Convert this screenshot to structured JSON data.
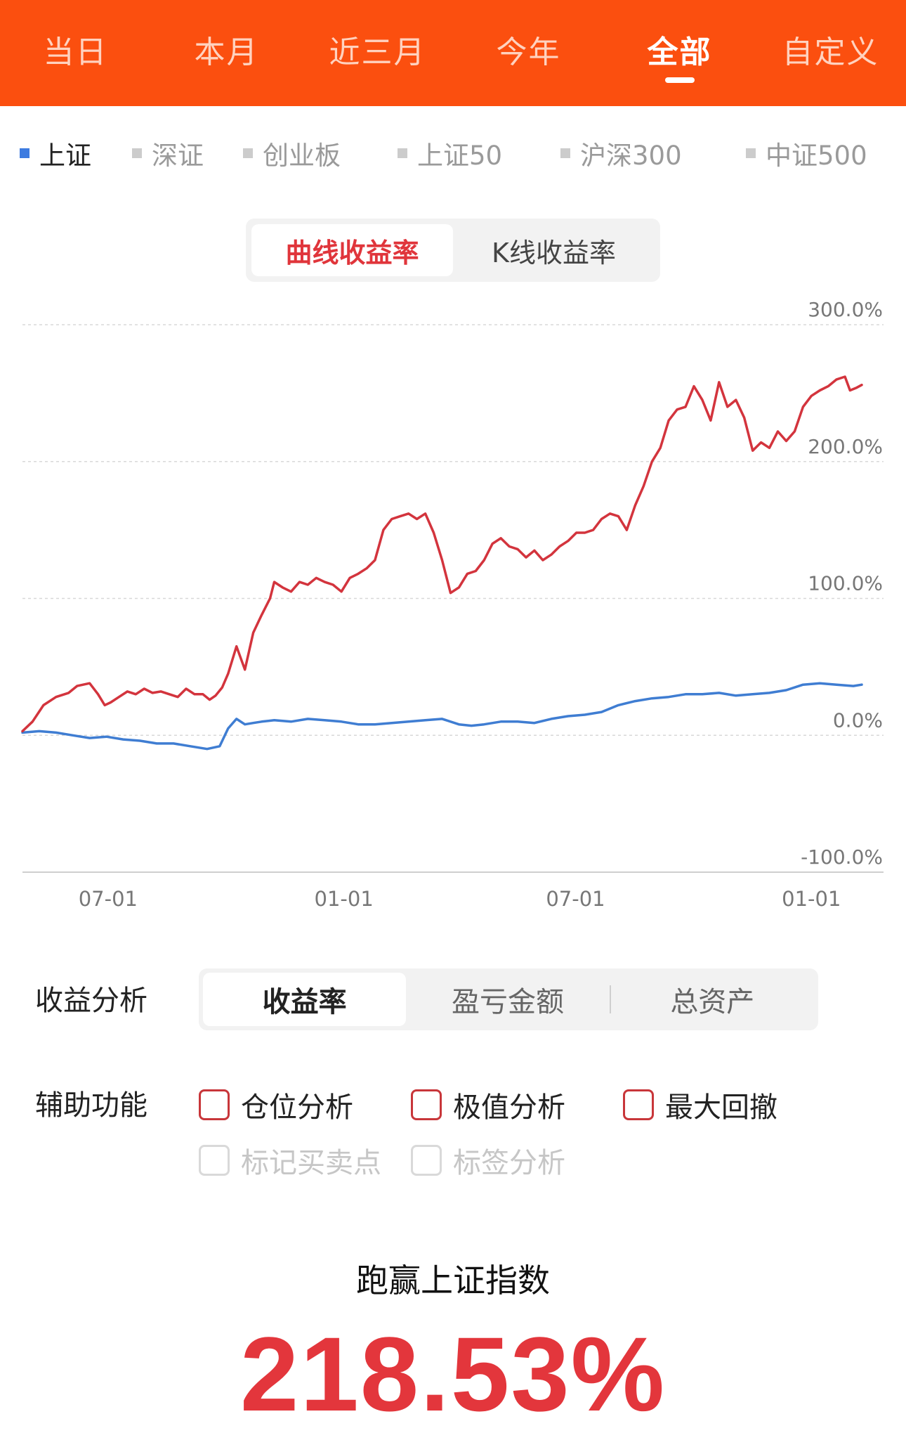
{
  "period_tabs": [
    {
      "label": "当日",
      "active": false
    },
    {
      "label": "本月",
      "active": false
    },
    {
      "label": "近三月",
      "active": false
    },
    {
      "label": "今年",
      "active": false
    },
    {
      "label": "全部",
      "active": true
    },
    {
      "label": "自定义",
      "active": false
    }
  ],
  "index_items": [
    {
      "label": "上证",
      "active": true
    },
    {
      "label": "深证",
      "active": false
    },
    {
      "label": "创业板",
      "active": false
    },
    {
      "label": "上证50",
      "active": false
    },
    {
      "label": "沪深300",
      "active": false
    },
    {
      "label": "中证500",
      "active": false
    }
  ],
  "chart_mode": {
    "options": [
      "曲线收益率",
      "K线收益率"
    ],
    "selected": "曲线收益率"
  },
  "chart_data": {
    "type": "line",
    "ylim": [
      -100,
      300
    ],
    "yticks": [
      "300.0%",
      "200.0%",
      "100.0%",
      "0.0%",
      "-100.0%"
    ],
    "ytick_values": [
      300,
      200,
      100,
      0,
      -100
    ],
    "xticks": [
      "07-01",
      "01-01",
      "07-01",
      "01-01"
    ],
    "x_range": [
      0,
      100
    ],
    "xtick_positions": [
      10.2,
      38.3,
      65.9,
      94.0
    ],
    "colors": {
      "portfolio": "#d3343d",
      "index": "#3f7dd2"
    },
    "series": [
      {
        "key": "portfolio",
        "x": [
          0,
          1.2,
          2.5,
          4,
          5.5,
          6.5,
          8,
          9,
          9.8,
          10.5,
          11.5,
          12.5,
          13.5,
          14.5,
          15.5,
          16.5,
          17.5,
          18.5,
          19.5,
          20.5,
          21.5,
          22.3,
          23,
          23.8,
          24.5,
          25.5,
          26.5,
          27.5,
          28.5,
          29.5,
          30,
          31,
          32,
          33,
          34,
          35,
          36,
          37,
          38,
          39,
          40,
          41,
          42,
          43,
          44,
          45,
          46,
          47,
          48,
          49,
          50,
          51,
          52,
          53,
          54,
          55,
          56,
          57,
          58,
          59,
          60,
          61,
          62,
          63,
          64,
          65,
          66,
          67,
          68,
          69,
          70,
          71,
          72,
          73,
          74,
          75,
          76,
          77,
          78,
          79,
          80,
          81,
          82,
          83,
          84,
          85,
          86,
          87,
          88,
          89,
          90,
          91,
          92,
          93,
          94,
          95,
          96,
          97,
          98,
          98.6,
          99.4,
          100
        ],
        "values": [
          3,
          10,
          22,
          28,
          31,
          36,
          38,
          30,
          22,
          24,
          28,
          32,
          30,
          34,
          31,
          32,
          30,
          28,
          34,
          30,
          30,
          26,
          29,
          35,
          45,
          65,
          48,
          75,
          88,
          100,
          112,
          108,
          105,
          112,
          110,
          115,
          112,
          110,
          105,
          115,
          118,
          122,
          128,
          150,
          158,
          160,
          162,
          158,
          162,
          148,
          128,
          104,
          108,
          118,
          120,
          128,
          140,
          144,
          138,
          136,
          130,
          135,
          128,
          132,
          138,
          142,
          148,
          148,
          150,
          158,
          162,
          160,
          150,
          168,
          182,
          200,
          210,
          230,
          238,
          240,
          255,
          245,
          230,
          258,
          240,
          245,
          232,
          208,
          214,
          210,
          222,
          215,
          222,
          240,
          248,
          252,
          255,
          260,
          262,
          252,
          254,
          256
        ]
      },
      {
        "key": "index",
        "x": [
          0,
          2,
          4,
          6,
          8,
          10,
          12,
          14,
          16,
          18,
          20,
          22,
          23.5,
          24.5,
          25.5,
          26.5,
          27.5,
          28.5,
          30,
          32,
          34,
          36,
          38,
          40,
          42,
          44,
          46,
          48,
          50,
          52,
          53.5,
          55,
          57,
          59,
          61,
          63,
          65,
          67,
          69,
          71,
          73,
          75,
          77,
          79,
          81,
          83,
          85,
          87,
          89,
          91,
          93,
          95,
          97,
          99,
          100
        ],
        "values": [
          2,
          3,
          2,
          0,
          -2,
          -1,
          -3,
          -4,
          -6,
          -6,
          -8,
          -10,
          -8,
          5,
          12,
          8,
          9,
          10,
          11,
          10,
          12,
          11,
          10,
          8,
          8,
          9,
          10,
          11,
          12,
          8,
          7,
          8,
          10,
          10,
          9,
          12,
          14,
          15,
          17,
          22,
          25,
          27,
          28,
          30,
          30,
          31,
          29,
          30,
          31,
          33,
          37,
          38,
          37,
          36,
          37
        ]
      }
    ]
  },
  "analysis": {
    "label": "收益分析",
    "options": [
      "收益率",
      "盈亏金额",
      "总资产"
    ],
    "selected": "收益率"
  },
  "aux": {
    "label": "辅助功能",
    "checkboxes": [
      {
        "label": "仓位分析",
        "checked": false,
        "enabled": true
      },
      {
        "label": "极值分析",
        "checked": false,
        "enabled": true
      },
      {
        "label": "最大回撤",
        "checked": false,
        "enabled": true
      },
      {
        "label": "标记买卖点",
        "checked": false,
        "enabled": false
      },
      {
        "label": "标签分析",
        "checked": false,
        "enabled": false
      }
    ]
  },
  "summary": {
    "title": "跑赢上证指数",
    "value": "218.53%"
  }
}
